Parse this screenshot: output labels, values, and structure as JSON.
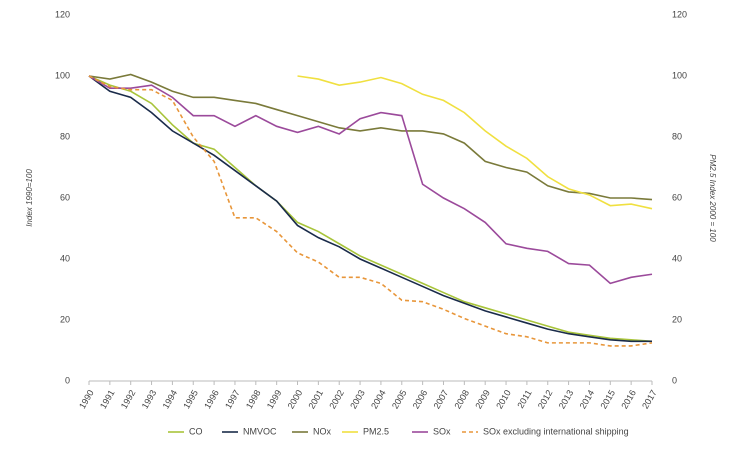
{
  "chart_data": {
    "type": "line",
    "y_label": "Index 1990=100",
    "y2_label": "PM2.5 Index 2000 = 100",
    "categories": [
      "1990",
      "1991",
      "1992",
      "1993",
      "1994",
      "1995",
      "1996",
      "1997",
      "1998",
      "1999",
      "2000",
      "2001",
      "2002",
      "2003",
      "2004",
      "2005",
      "2006",
      "2007",
      "2008",
      "2009",
      "2010",
      "2011",
      "2012",
      "2013",
      "2014",
      "2015",
      "2016",
      "2017"
    ],
    "ylim": [
      0,
      120
    ],
    "yticks": [
      0,
      20,
      40,
      60,
      80,
      100,
      120
    ],
    "y2lim": [
      0,
      120
    ],
    "y2ticks": [
      0,
      20,
      40,
      60,
      80,
      100,
      120
    ],
    "grid": false,
    "legend": "bottom",
    "series": [
      {
        "name": "CO",
        "color": "#a8c43a",
        "style": "solid",
        "values": [
          100,
          97,
          95,
          91,
          84,
          78,
          76,
          70,
          64,
          59,
          52,
          49,
          45,
          41,
          38,
          35,
          32,
          29,
          26,
          24,
          22,
          20,
          18,
          16,
          15,
          14,
          13.5,
          13
        ]
      },
      {
        "name": "NMVOC",
        "color": "#1a2b4a",
        "style": "solid",
        "values": [
          100,
          95,
          93,
          88,
          82,
          78,
          74,
          69,
          64,
          59,
          51,
          47,
          44,
          40,
          37,
          34,
          31,
          28,
          25.5,
          23,
          21,
          19,
          17,
          15.5,
          14.5,
          13.5,
          13,
          13
        ]
      },
      {
        "name": "NOx",
        "color": "#7a7a3a",
        "style": "solid",
        "values": [
          100,
          99,
          100.5,
          98,
          95,
          93,
          93,
          92,
          91,
          89,
          87,
          85,
          83,
          82,
          83,
          82,
          82,
          81,
          78,
          72,
          70,
          68.5,
          64,
          62,
          61.5,
          60,
          60,
          59.5
        ]
      },
      {
        "name": "PM2.5",
        "color": "#f0e040",
        "style": "solid",
        "axis": "y2",
        "values": [
          null,
          null,
          null,
          null,
          null,
          null,
          null,
          null,
          null,
          null,
          100,
          99,
          97,
          98,
          99.5,
          97.5,
          94,
          92,
          88,
          82,
          77,
          73,
          67,
          63,
          61,
          57.5,
          58,
          56.5
        ]
      },
      {
        "name": "SOx",
        "color": "#9b4a9b",
        "style": "solid",
        "values": [
          100,
          96,
          96,
          97,
          93,
          87,
          87,
          83.5,
          87,
          83.5,
          81.5,
          83.5,
          81,
          86,
          88,
          87,
          64.5,
          60,
          56.5,
          52,
          45,
          43.5,
          42.5,
          38.5,
          38,
          32,
          34,
          35
        ]
      },
      {
        "name": "SOx excluding international shipping",
        "color": "#e8963a",
        "style": "dashed",
        "values": [
          100,
          96.5,
          95.5,
          95.5,
          92,
          80,
          72,
          53.5,
          53.5,
          49,
          42,
          39,
          34,
          34,
          32,
          26.5,
          26,
          23.5,
          20.5,
          18,
          15.5,
          14.5,
          12.5,
          12.5,
          12.5,
          11.5,
          11.5,
          12.5
        ]
      }
    ]
  }
}
